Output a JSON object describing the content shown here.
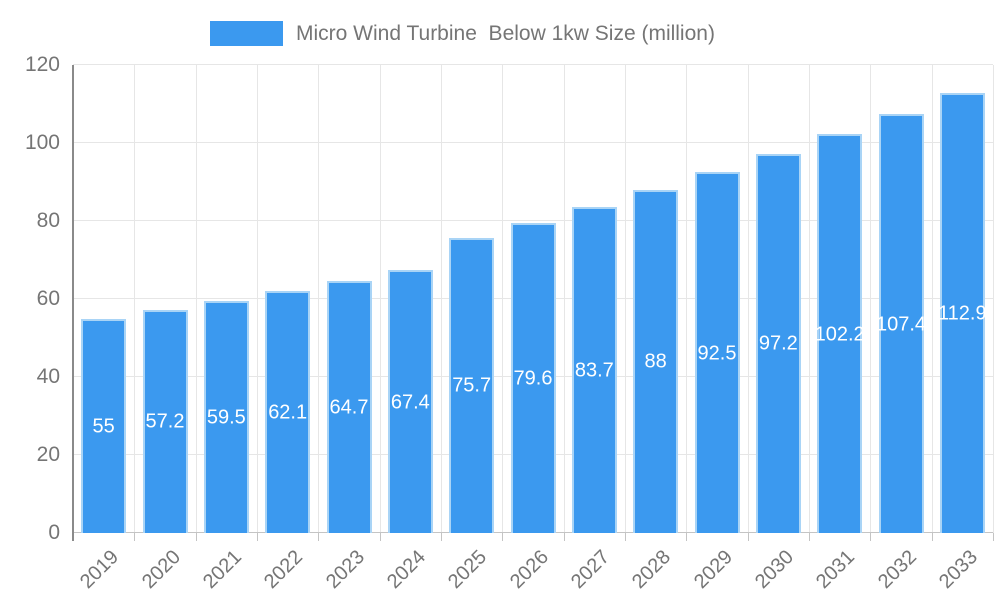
{
  "chart_data": {
    "type": "bar",
    "title": "Micro Wind Turbine  Below 1kw Size (million)",
    "legend_entries": [
      "Micro Wind Turbine  Below 1kw Size (million)"
    ],
    "legend_position": "top",
    "categories": [
      "2019",
      "2020",
      "2021",
      "2022",
      "2023",
      "2024",
      "2025",
      "2026",
      "2027",
      "2028",
      "2029",
      "2030",
      "2031",
      "2032",
      "2033"
    ],
    "values": [
      55,
      57.2,
      59.5,
      62.1,
      64.7,
      67.4,
      75.7,
      79.6,
      83.7,
      88,
      92.5,
      97.2,
      102.2,
      107.4,
      112.9
    ],
    "value_labels": [
      "55",
      "57.2",
      "59.5",
      "62.1",
      "64.7",
      "67.4",
      "75.7",
      "79.6",
      "83.7",
      "88",
      "92.5",
      "97.2",
      "102.2",
      "107.4",
      "112.9"
    ],
    "xlabel": "",
    "ylabel": "",
    "ylim": [
      0,
      120
    ],
    "y_ticks": [
      0,
      20,
      40,
      60,
      80,
      100,
      120
    ],
    "grid": true
  },
  "colors": {
    "bar_fill": "#3b99ef",
    "bar_border": "#a9d4f6",
    "grid_line": "#e6e6e6",
    "y_axis_line": "#8a8a8a",
    "x_axis_line": "#c4c4c4",
    "axis_text": "#757575",
    "value_text": "#ffffff",
    "background": "#ffffff"
  }
}
